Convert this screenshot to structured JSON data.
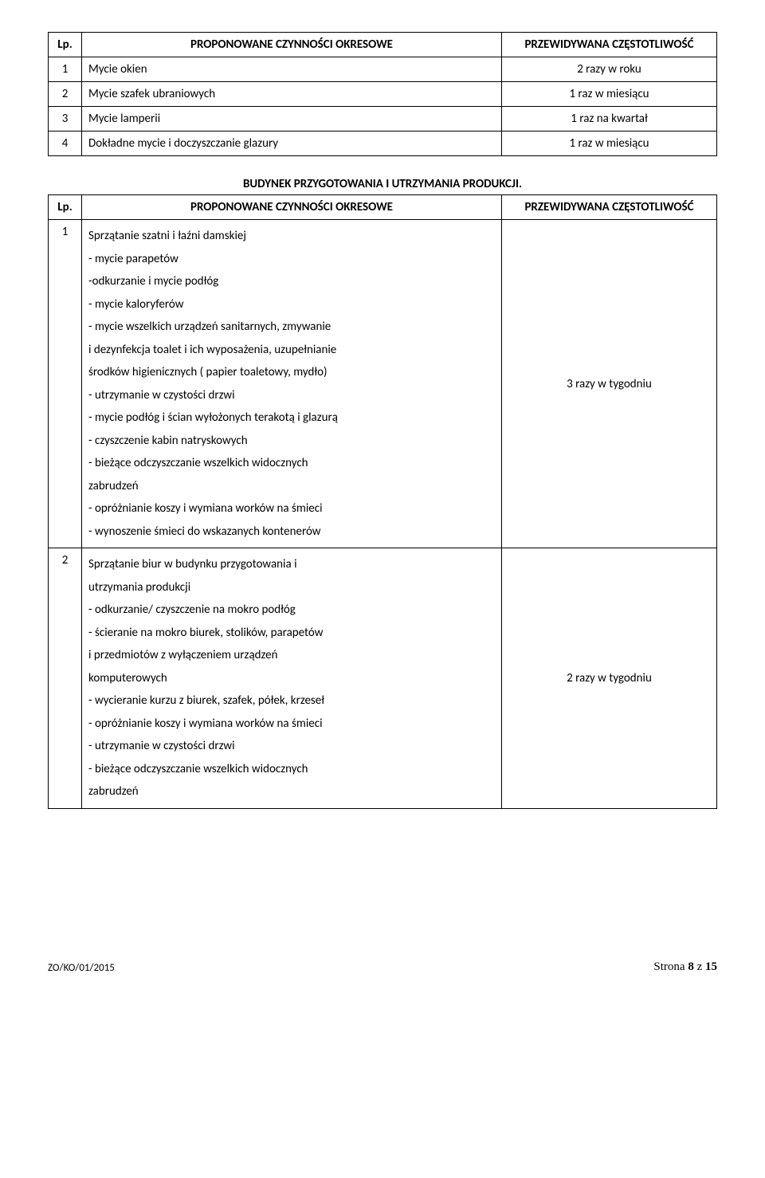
{
  "table1": {
    "header": {
      "lp": "Lp.",
      "activity": "PROPONOWANE  CZYNNOŚCI  OKRESOWE",
      "freq": "PRZEWIDYWANA CZĘSTOTLIWOŚĆ"
    },
    "rows": [
      {
        "lp": "1",
        "activity": "Mycie okien",
        "freq": "2 razy w roku"
      },
      {
        "lp": "2",
        "activity": "Mycie szafek ubraniowych",
        "freq": "1 raz w miesiącu"
      },
      {
        "lp": "3",
        "activity": "Mycie lamperii",
        "freq": "1 raz na kwartał"
      },
      {
        "lp": "4",
        "activity": "Dokładne mycie i doczyszczanie glazury",
        "freq": "1 raz w miesiącu"
      }
    ]
  },
  "section_title": "BUDYNEK PRZYGOTOWANIA I UTRZYMANIA PRODUKCJI.",
  "table2": {
    "header": {
      "lp": "Lp.",
      "activity": "PROPONOWANE  CZYNNOŚCI  OKRESOWE",
      "freq": "PRZEWIDYWANA CZĘSTOTLIWOŚĆ"
    },
    "row1": {
      "lp": "1",
      "lines": [
        "Sprzątanie szatni i łaźni damskiej",
        "- mycie parapetów",
        "-odkurzanie i mycie podłóg",
        "- mycie kaloryferów",
        "- mycie wszelkich urządzeń sanitarnych, zmywanie",
        "i dezynfekcja toalet i ich wyposażenia, uzupełnianie",
        "środków higienicznych ( papier toaletowy,  mydło)",
        "- utrzymanie w czystości drzwi",
        "- mycie podłóg i ścian wyłożonych terakotą i glazurą",
        "- czyszczenie kabin natryskowych",
        "- bieżące odczyszczanie wszelkich widocznych",
        "zabrudzeń",
        "- opróżnianie koszy i wymiana worków na śmieci",
        "- wynoszenie śmieci do wskazanych kontenerów"
      ],
      "freq": "3 razy w tygodniu"
    },
    "row2": {
      "lp": "2",
      "lines": [
        "Sprzątanie biur w budynku przygotowania i",
        "utrzymania produkcji",
        "- odkurzanie/ czyszczenie na mokro podłóg",
        "- ścieranie na mokro biurek, stolików, parapetów",
        "i przedmiotów z wyłączeniem urządzeń",
        "komputerowych",
        "- wycieranie kurzu z biurek, szafek, półek, krzeseł",
        "- opróżnianie koszy i wymiana worków na śmieci",
        "- utrzymanie w czystości drzwi",
        "- bieżące odczyszczanie wszelkich widocznych",
        "zabrudzeń"
      ],
      "freq": "2 razy w tygodniu"
    }
  },
  "footer": {
    "left": "ZO/KO/01/2015",
    "right_prefix": "Strona ",
    "right_page": "8",
    "right_mid": " z ",
    "right_total": "15"
  }
}
